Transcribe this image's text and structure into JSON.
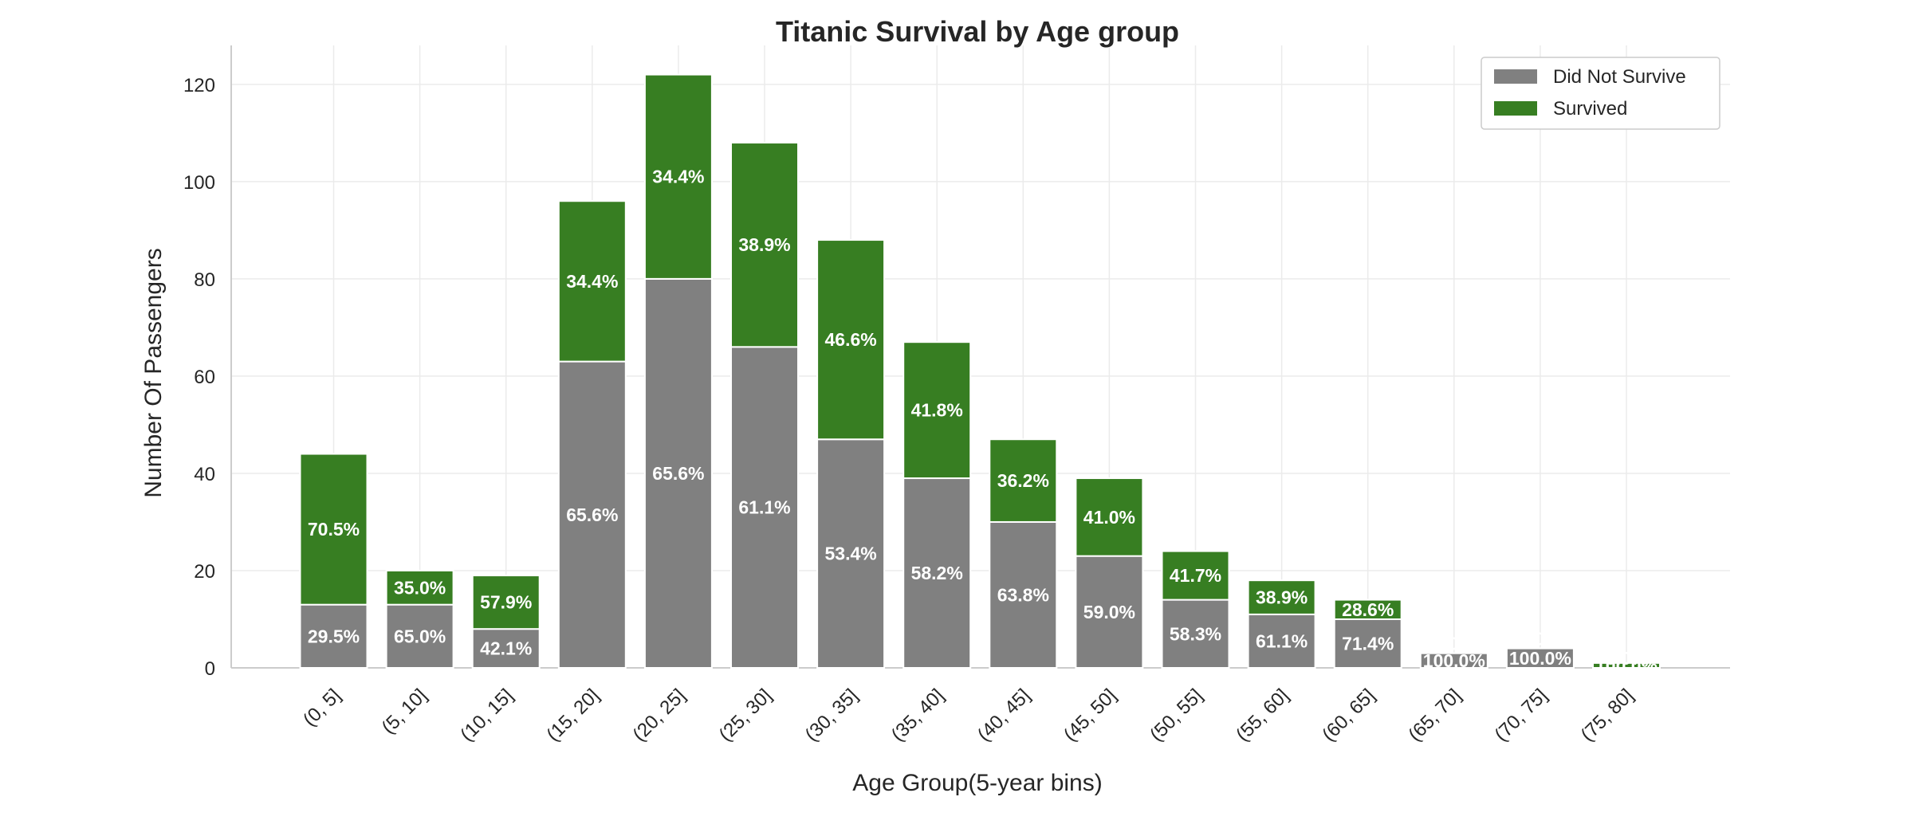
{
  "chart_data": {
    "type": "bar",
    "stacked": true,
    "title": "Titanic Survival by Age group",
    "xlabel": "Age Group(5-year bins)",
    "ylabel": "Number Of Passengers",
    "ylim": [
      0,
      128
    ],
    "yticks": [
      0,
      20,
      40,
      60,
      80,
      100,
      120
    ],
    "grid": true,
    "legend_position": "top-right",
    "categories": [
      "(0, 5]",
      "(5, 10]",
      "(10, 15]",
      "(15, 20]",
      "(20, 25]",
      "(25, 30]",
      "(30, 35]",
      "(35, 40]",
      "(40, 45]",
      "(45, 50]",
      "(50, 55]",
      "(55, 60]",
      "(60, 65]",
      "(65, 70]",
      "(70, 75]",
      "(75, 80]"
    ],
    "series": [
      {
        "name": "Did Not Survive",
        "color": "#808080",
        "values": [
          13,
          13,
          8,
          63,
          80,
          66,
          47,
          39,
          30,
          23,
          14,
          11,
          10,
          3,
          4,
          0
        ],
        "labels": [
          "29.5%",
          "65.0%",
          "42.1%",
          "65.6%",
          "65.6%",
          "61.1%",
          "53.4%",
          "58.2%",
          "63.8%",
          "59.0%",
          "58.3%",
          "61.1%",
          "71.4%",
          "100.0%",
          "100.0%",
          "0.0%"
        ]
      },
      {
        "name": "Survived",
        "color": "#377e22",
        "values": [
          31,
          7,
          11,
          33,
          42,
          42,
          41,
          28,
          17,
          16,
          10,
          7,
          4,
          0,
          0,
          1
        ],
        "labels": [
          "70.5%",
          "35.0%",
          "57.9%",
          "34.4%",
          "34.4%",
          "38.9%",
          "46.6%",
          "41.8%",
          "36.2%",
          "41.0%",
          "41.7%",
          "38.9%",
          "28.6%",
          "0.0%",
          "0.0%",
          "100.0%"
        ]
      }
    ]
  }
}
